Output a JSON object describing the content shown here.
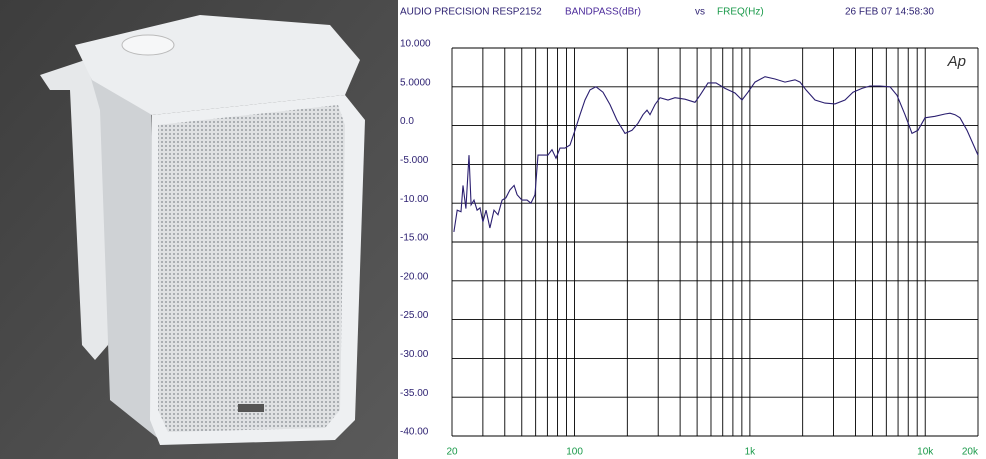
{
  "chart_data": {
    "type": "line",
    "title": "AUDIO PRECISION RESP2152",
    "ylabel": "BANDPASS(dBr)",
    "vs": "vs",
    "xlabel": "FREQ(Hz)",
    "timestamp": "26 FEB 07 14:58:30",
    "logo": "Ap",
    "xscale": "log",
    "xlim": [
      20,
      20000
    ],
    "xticks": [
      20,
      100,
      {
        "value": 1000,
        "label": "1k"
      },
      {
        "value": 10000,
        "label": "10k"
      },
      {
        "value": 20000,
        "label": "20k"
      }
    ],
    "xgrid": [
      20,
      30,
      40,
      50,
      60,
      70,
      80,
      90,
      100,
      200,
      300,
      400,
      500,
      600,
      700,
      800,
      900,
      1000,
      2000,
      3000,
      4000,
      5000,
      6000,
      7000,
      8000,
      9000,
      10000,
      20000
    ],
    "ylim": [
      -40,
      10
    ],
    "yticks": [
      {
        "value": 10,
        "label": "10.000"
      },
      {
        "value": 5,
        "label": "5.0000"
      },
      {
        "value": 0,
        "label": "0.0"
      },
      {
        "value": -5,
        "label": "-5.000"
      },
      {
        "value": -10,
        "label": "-10.00"
      },
      {
        "value": -15,
        "label": "-15.00"
      },
      {
        "value": -20,
        "label": "-20.00"
      },
      {
        "value": -25,
        "label": "-25.00"
      },
      {
        "value": -30,
        "label": "-30.00"
      },
      {
        "value": -35,
        "label": "-35.00"
      },
      {
        "value": -40,
        "label": "-40.00"
      }
    ],
    "grid": true,
    "x": [
      20.5,
      21.4,
      22.5,
      23.1,
      24.0,
      25.0,
      25.7,
      26.7,
      27.8,
      28.9,
      30.0,
      31.3,
      32.9,
      34.7,
      36.6,
      38.6,
      40.6,
      42.8,
      45.2,
      47.0,
      50.1,
      53.6,
      56.4,
      59.5,
      61.9,
      65.2,
      70.5,
      74.4,
      78.4,
      82.6,
      88.2,
      94.2,
      100.6,
      107.4,
      114.7,
      122.5,
      132.5,
      145.3,
      159.3,
      174.7,
      194.0,
      212.7,
      230.1,
      245.7,
      259.0,
      269.4,
      287.6,
      307.2,
      341.3,
      374.1,
      426.6,
      486.5,
      519.6,
      577.1,
      640.9,
      721.2,
      822.2,
      901.6,
      975.5,
      1069,
      1220,
      1391,
      1586,
      1808,
      1931,
      2090,
      2351,
      2681,
      3057,
      3486,
      3875,
      4360,
      4843,
      5521,
      6295,
      6902,
      7667,
      8406,
      9094,
      9970,
      11367,
      12960,
      13844,
      14779,
      15791,
      17308,
      20000
    ],
    "series": [
      {
        "color": "#2b1f70",
        "values": [
          -13.7,
          -10.9,
          -11.1,
          -7.7,
          -10.7,
          -3.8,
          -10.2,
          -9.6,
          -10.9,
          -10.6,
          -12.4,
          -10.9,
          -13.2,
          -10.9,
          -11.5,
          -9.6,
          -9.3,
          -8.3,
          -7.7,
          -8.9,
          -9.6,
          -9.6,
          -10.0,
          -8.9,
          -3.8,
          -3.8,
          -3.8,
          -3.1,
          -4.2,
          -2.9,
          -2.9,
          -2.5,
          -0.6,
          1.4,
          3.3,
          4.6,
          5.0,
          4.3,
          2.7,
          0.7,
          -1.0,
          -0.6,
          0.3,
          1.4,
          2.0,
          1.4,
          2.7,
          3.6,
          3.3,
          3.6,
          3.4,
          3.0,
          3.9,
          5.5,
          5.5,
          4.8,
          4.2,
          3.3,
          4.3,
          5.6,
          6.3,
          6.0,
          5.6,
          5.9,
          5.6,
          4.6,
          3.3,
          2.9,
          2.8,
          3.3,
          4.3,
          4.8,
          5.1,
          5.1,
          5.0,
          3.9,
          1.4,
          -1.0,
          -0.6,
          1.0,
          1.2,
          1.5,
          1.6,
          1.4,
          1.0,
          -0.6,
          -3.8
        ]
      }
    ]
  }
}
